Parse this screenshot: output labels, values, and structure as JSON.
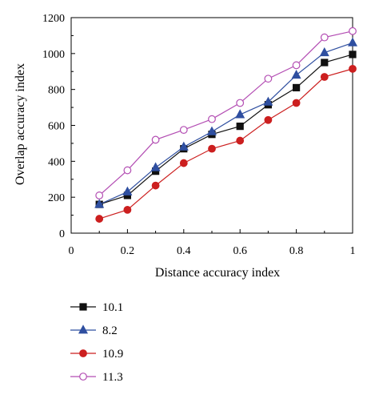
{
  "chart_data": {
    "type": "line",
    "xlabel": "Distance accuracy index",
    "ylabel": "Overlap accuracy index",
    "xlim": [
      0,
      1
    ],
    "ylim": [
      0,
      1200
    ],
    "x_ticks": [
      0,
      0.2,
      0.4,
      0.6,
      0.8,
      1
    ],
    "x_tick_labels": [
      "0",
      "0.2",
      "0.4",
      "0.6",
      "0.8",
      "1"
    ],
    "y_ticks": [
      0,
      200,
      400,
      600,
      800,
      1000,
      1200
    ],
    "y_tick_labels": [
      "0",
      "200",
      "400",
      "600",
      "800",
      "1000",
      "1200"
    ],
    "grid": false,
    "legend_position": "bottom",
    "x": [
      0.1,
      0.2,
      0.3,
      0.4,
      0.5,
      0.6,
      0.7,
      0.8,
      0.9,
      1.0
    ],
    "series": [
      {
        "name": "10.1",
        "marker": "square",
        "color": "#111111",
        "marker_fill": "#111111",
        "values": [
          160,
          210,
          345,
          470,
          550,
          595,
          715,
          810,
          950,
          995
        ]
      },
      {
        "name": "8.2",
        "marker": "triangle",
        "color": "#2f4fa0",
        "marker_fill": "#2f4fa0",
        "values": [
          160,
          230,
          365,
          480,
          565,
          660,
          730,
          880,
          1005,
          1060
        ]
      },
      {
        "name": "10.9",
        "marker": "circle",
        "color": "#cc1f1f",
        "marker_fill": "#cc1f1f",
        "values": [
          80,
          130,
          265,
          390,
          470,
          515,
          630,
          725,
          870,
          915
        ]
      },
      {
        "name": "11.3",
        "marker": "open-circle",
        "color": "#b34db3",
        "marker_fill": "#ffffff",
        "values": [
          210,
          350,
          520,
          575,
          635,
          725,
          860,
          935,
          1090,
          1125
        ]
      }
    ]
  }
}
